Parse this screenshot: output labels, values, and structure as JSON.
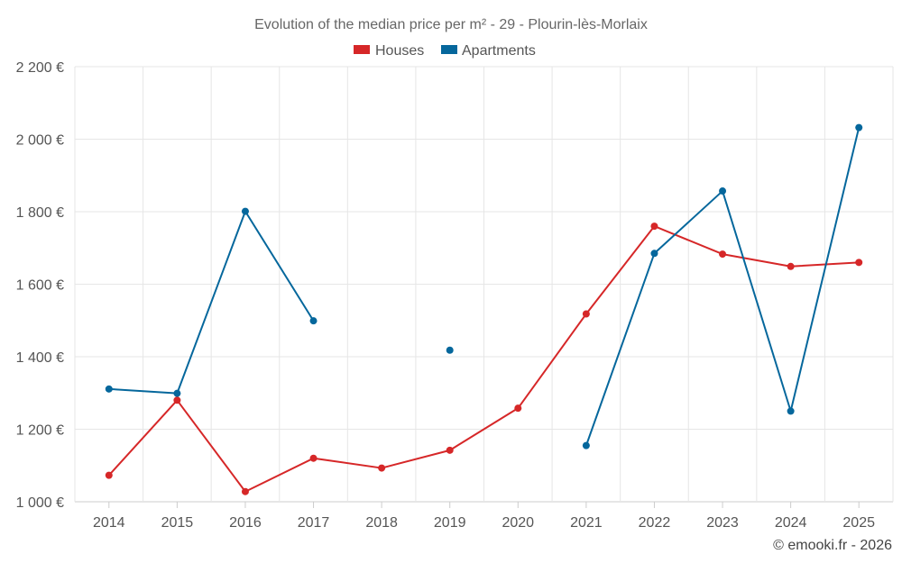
{
  "chart_data": {
    "type": "line",
    "title": "Evolution of the median price per m² - 29 - Plourin-lès-Morlaix",
    "categories": [
      "2014",
      "2015",
      "2016",
      "2017",
      "2018",
      "2019",
      "2020",
      "2021",
      "2022",
      "2023",
      "2024",
      "2025"
    ],
    "series": [
      {
        "name": "Houses",
        "color": "#d62728",
        "values": [
          1073,
          1280,
          1028,
          1120,
          1093,
          1142,
          1258,
          1518,
          1760,
          1683,
          1649,
          1660
        ]
      },
      {
        "name": "Apartments",
        "color": "#05679c",
        "values": [
          1311,
          1299,
          1801,
          1499,
          null,
          1418,
          null,
          1155,
          1685,
          1857,
          1250,
          2032
        ]
      }
    ],
    "ylim": [
      1000,
      2200
    ],
    "yticks": [
      1000,
      1200,
      1400,
      1600,
      1800,
      2000,
      2200
    ],
    "ytick_labels": [
      "1 000 €",
      "1 200 €",
      "1 400 €",
      "1 600 €",
      "1 800 €",
      "2 000 €",
      "2 200 €"
    ],
    "legend_position": "top-center",
    "grid": true
  },
  "credit": "© emooki.fr - 2026"
}
